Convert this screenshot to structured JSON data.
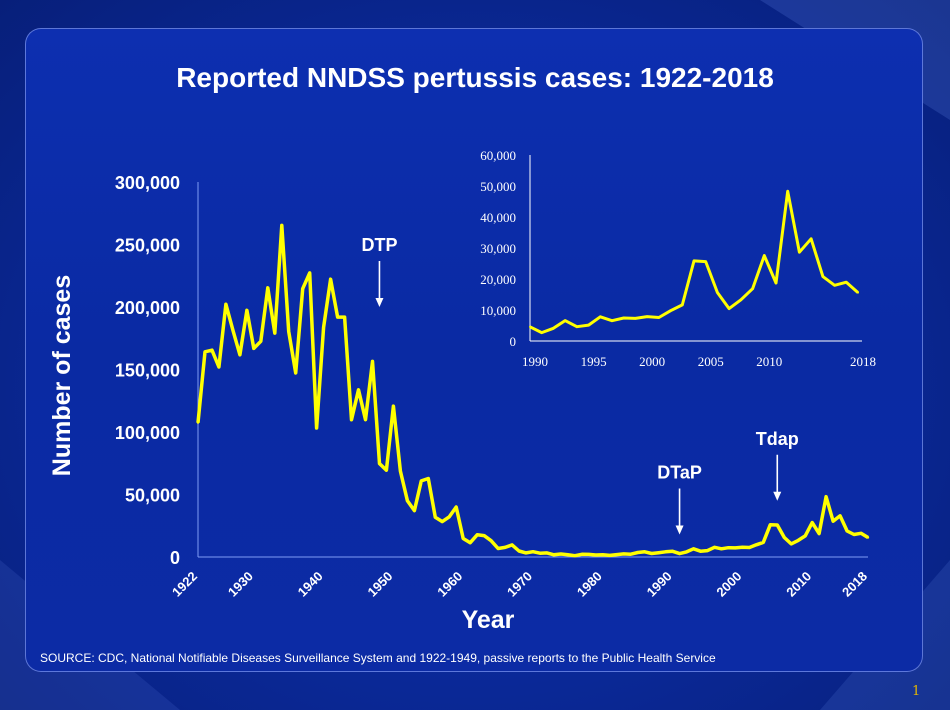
{
  "slide": {
    "title": "Reported  NNDSS pertussis cases: 1922-2018",
    "source": "SOURCE: CDC, National Notifiable Diseases Surveillance System and 1922-1949, passive reports to the Public Health Service",
    "page_number": "1"
  },
  "colors": {
    "line": "#ffff00",
    "text": "#ffffff",
    "axis": "#ffffff"
  },
  "chart_data": [
    {
      "type": "line",
      "title": "",
      "xlabel": "Year",
      "ylabel": "Number of cases",
      "xlim": [
        1922,
        2018
      ],
      "ylim": [
        0,
        300000
      ],
      "y_ticks": [
        0,
        50000,
        100000,
        150000,
        200000,
        250000,
        300000
      ],
      "y_tick_labels": [
        "0",
        "50,000",
        "100,000",
        "150,000",
        "200,000",
        "250,000",
        "300,000"
      ],
      "x_ticks": [
        1922,
        1930,
        1940,
        1950,
        1960,
        1970,
        1980,
        1990,
        2000,
        2010,
        2018
      ],
      "x_tick_labels": [
        "1922",
        "1930",
        "1940",
        "1950",
        "1960",
        "1970",
        "1980",
        "1990",
        "2000",
        "2010",
        "2018"
      ],
      "annotations": [
        {
          "label": "DTP",
          "year": 1948,
          "value": 200000
        },
        {
          "label": "DTaP",
          "year": 1991,
          "value": 18000
        },
        {
          "label": "Tdap",
          "year": 2005,
          "value": 45000
        }
      ],
      "x": [
        1922,
        1923,
        1924,
        1925,
        1926,
        1927,
        1928,
        1929,
        1930,
        1931,
        1932,
        1933,
        1934,
        1935,
        1936,
        1937,
        1938,
        1939,
        1940,
        1941,
        1942,
        1943,
        1944,
        1945,
        1946,
        1947,
        1948,
        1949,
        1950,
        1951,
        1952,
        1953,
        1954,
        1955,
        1956,
        1957,
        1958,
        1959,
        1960,
        1961,
        1962,
        1963,
        1964,
        1965,
        1966,
        1967,
        1968,
        1969,
        1970,
        1971,
        1972,
        1973,
        1974,
        1975,
        1976,
        1977,
        1978,
        1979,
        1980,
        1981,
        1982,
        1983,
        1984,
        1985,
        1986,
        1987,
        1988,
        1989,
        1990,
        1991,
        1992,
        1993,
        1994,
        1995,
        1996,
        1997,
        1998,
        1999,
        2000,
        2001,
        2002,
        2003,
        2004,
        2005,
        2006,
        2007,
        2008,
        2009,
        2010,
        2011,
        2012,
        2013,
        2014,
        2015,
        2016,
        2017,
        2018
      ],
      "values": [
        107473,
        164191,
        165418,
        152003,
        202210,
        181411,
        161799,
        197371,
        166914,
        172559,
        215343,
        179135,
        265269,
        180518,
        147237,
        214652,
        227319,
        103188,
        183866,
        222202,
        191890,
        191943,
        109873,
        133792,
        109860,
        156517,
        74715,
        69479,
        120718,
        68687,
        45030,
        37129,
        60886,
        62786,
        31732,
        28295,
        32148,
        40005,
        14809,
        11468,
        17749,
        17135,
        13005,
        6799,
        7717,
        9718,
        4810,
        3285,
        4249,
        3036,
        3287,
        1759,
        2402,
        1738,
        1010,
        2177,
        2063,
        1623,
        1730,
        1248,
        1895,
        2463,
        2276,
        3589,
        4195,
        2823,
        3450,
        4157,
        4570,
        2719,
        4083,
        6586,
        4617,
        5137,
        7796,
        6564,
        7405,
        7288,
        7867,
        7580,
        9771,
        11647,
        25827,
        25616,
        15632,
        10454,
        13278,
        16858,
        27550,
        18719,
        48277,
        28639,
        32971,
        20762,
        17972,
        18975,
        15609
      ],
      "series_name": "Reported pertussis cases"
    },
    {
      "type": "line",
      "title": "",
      "xlim": [
        1990,
        2018
      ],
      "ylim": [
        0,
        60000
      ],
      "y_ticks": [
        0,
        10000,
        20000,
        30000,
        40000,
        50000,
        60000
      ],
      "y_tick_labels": [
        "0",
        "10,000",
        "20,000",
        "30,000",
        "40,000",
        "50,000",
        "60,000"
      ],
      "x_ticks": [
        1990,
        1995,
        2000,
        2005,
        2010,
        2018
      ],
      "x_tick_labels": [
        "1990",
        "1995",
        "2000",
        "2005",
        "2010",
        "2018"
      ],
      "x": [
        1990,
        1991,
        1992,
        1993,
        1994,
        1995,
        1996,
        1997,
        1998,
        1999,
        2000,
        2001,
        2002,
        2003,
        2004,
        2005,
        2006,
        2007,
        2008,
        2009,
        2010,
        2011,
        2012,
        2013,
        2014,
        2015,
        2016,
        2017,
        2018
      ],
      "values": [
        4570,
        2719,
        4083,
        6586,
        4617,
        5137,
        7796,
        6564,
        7405,
        7288,
        7867,
        7580,
        9771,
        11647,
        25827,
        25616,
        15632,
        10454,
        13278,
        16858,
        27550,
        18719,
        48277,
        28639,
        32971,
        20762,
        17972,
        18975,
        15609
      ],
      "series_name": "Reported pertussis cases 1990-2018 (inset)"
    }
  ]
}
